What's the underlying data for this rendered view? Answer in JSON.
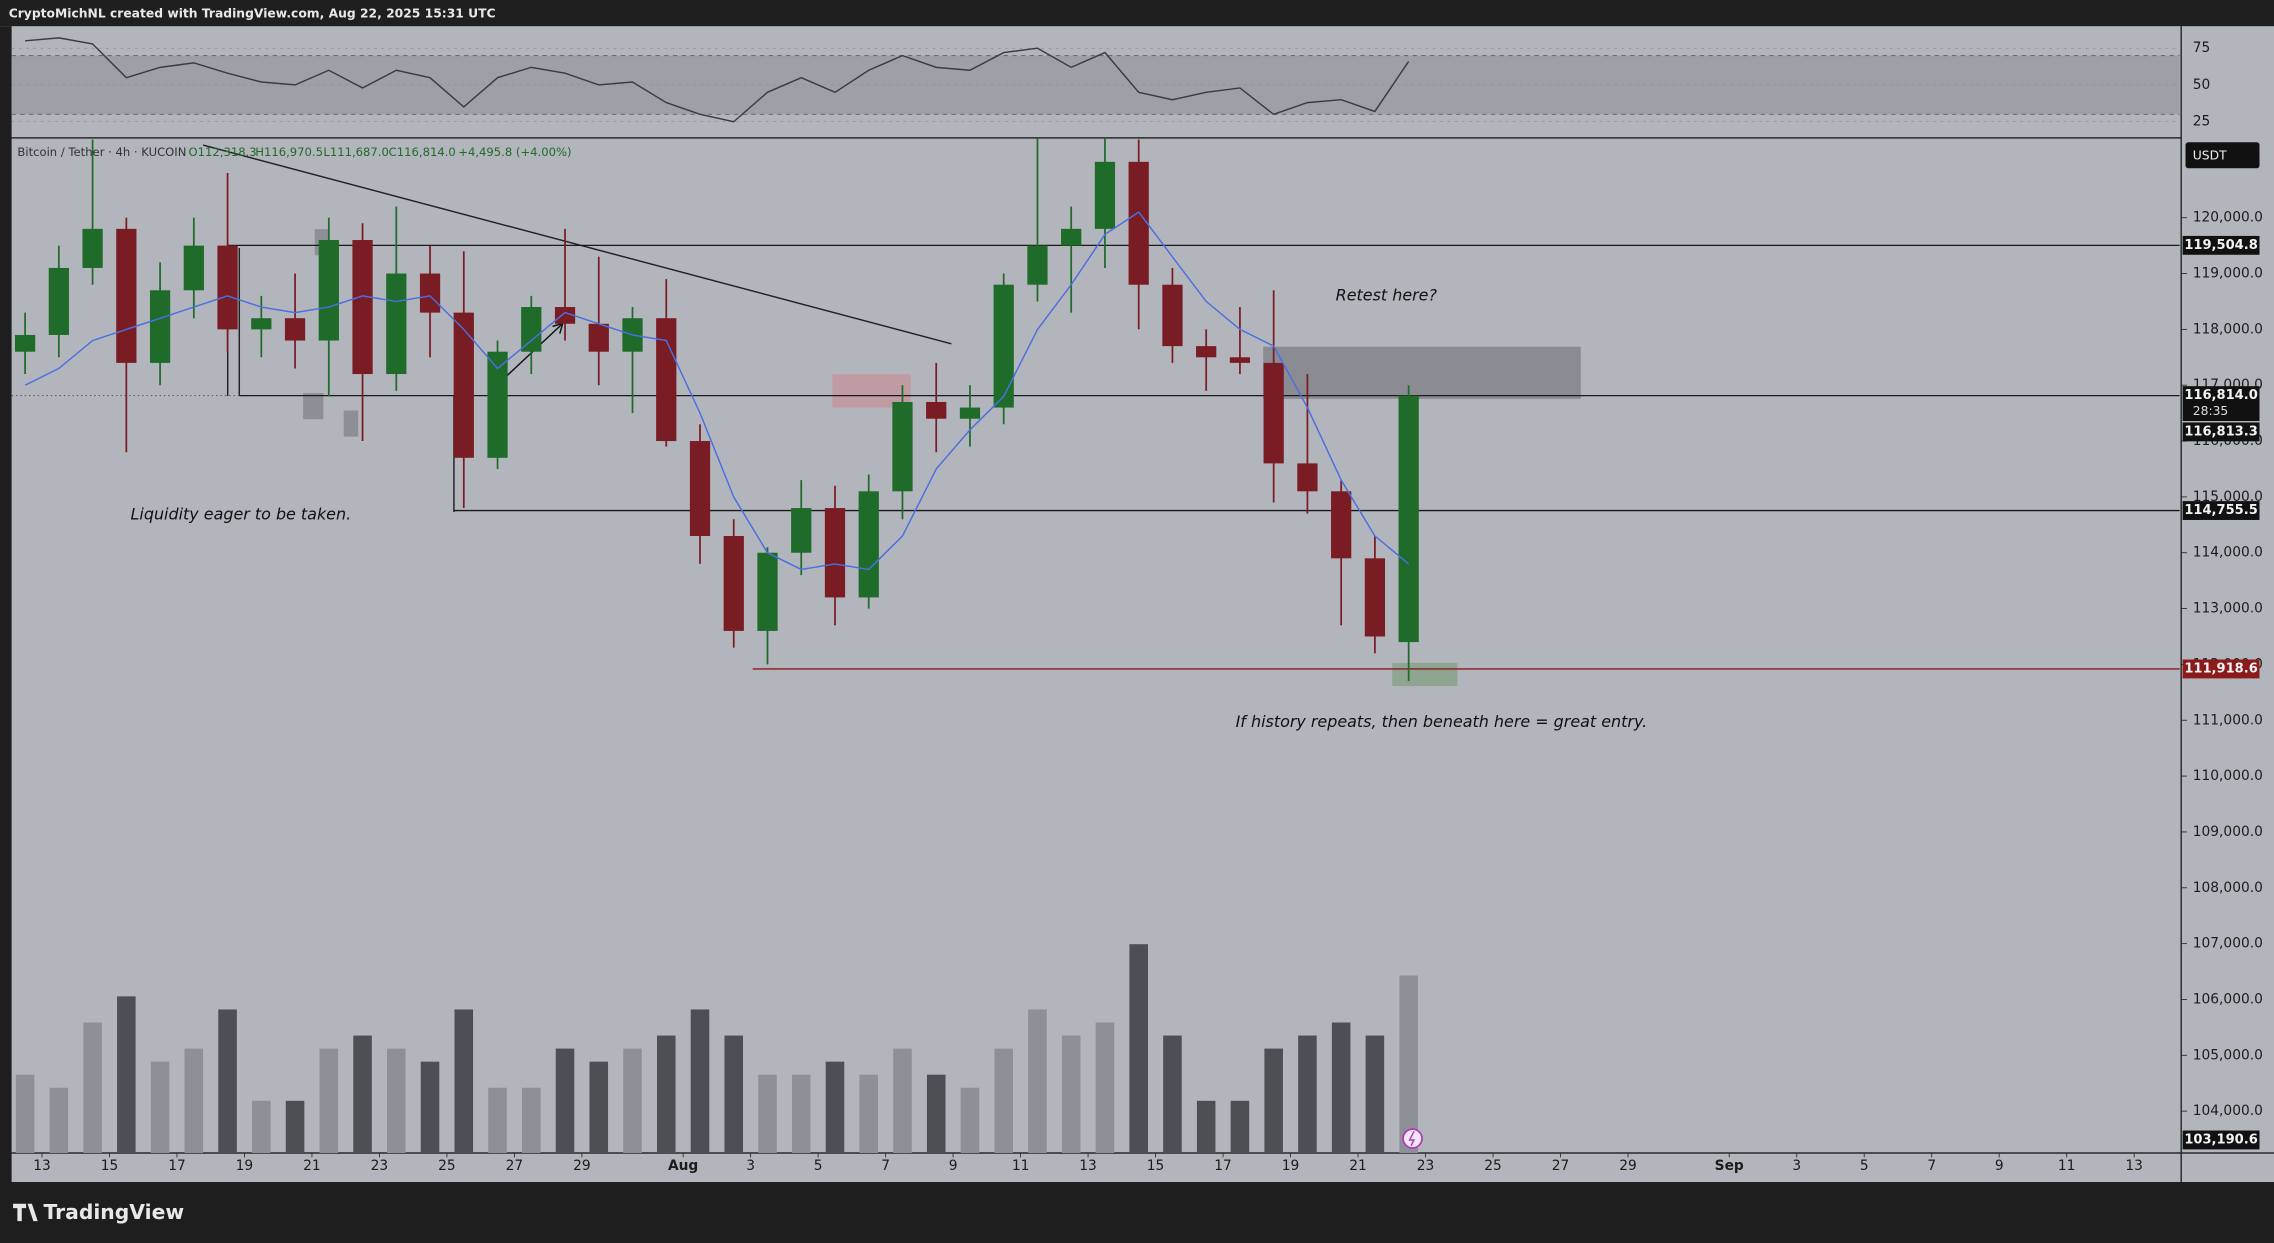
{
  "header": "CryptoMichNL created with TradingView.com, Aug 22, 2025 15:31 UTC",
  "footer_brand": "TradingView",
  "chart_data": {
    "type": "candlestick",
    "legend": {
      "symbol": "Bitcoin / Tether · 4h · KUCOIN",
      "open": "O112,318.3",
      "high": "H116,970.5",
      "low": "L111,687.0",
      "close": "C116,814.0",
      "change": "+4,495.8 (+4.00%)"
    },
    "currency": "USDT",
    "up_color": "#1e6b2a",
    "down_color": "#7a1c24",
    "x": [
      12.5,
      13.5,
      14.5,
      15.5,
      16.5,
      17.5,
      18.5,
      19.5,
      20.5,
      21.5,
      22.5,
      23.5,
      24.5,
      25.5,
      26.5,
      27.5,
      28.5,
      29.5,
      30.5,
      31.5,
      32.5,
      33.5,
      34.5,
      35.5,
      36.5,
      37.5,
      38.5,
      39.5,
      40.5,
      41.5,
      42.5,
      43.5,
      44.5,
      45.5,
      46.5,
      47.5,
      48.5,
      49.5,
      50.5,
      51.5,
      52.5,
      53.5
    ],
    "open": [
      117600,
      117900,
      119100,
      119800,
      117400,
      118700,
      119500,
      118000,
      118200,
      117800,
      119600,
      117200,
      119000,
      118300,
      115700,
      117600,
      118400,
      118100,
      117600,
      118200,
      116000,
      114300,
      112600,
      114000,
      114800,
      113200,
      115100,
      116700,
      116400,
      116600,
      118800,
      119500,
      119800,
      121000,
      118800,
      117700,
      117500,
      117400,
      115600,
      115100,
      113900,
      112400
    ],
    "high": [
      118300,
      119500,
      121400,
      120000,
      119200,
      120000,
      120800,
      118600,
      119000,
      120000,
      119900,
      120200,
      119500,
      119400,
      117800,
      118600,
      119800,
      119300,
      118400,
      118900,
      116300,
      114600,
      114100,
      115300,
      115200,
      115400,
      117000,
      117400,
      117000,
      119000,
      121500,
      120200,
      121700,
      121400,
      119100,
      118000,
      118400,
      118700,
      117200,
      115300,
      114300,
      117000
    ],
    "low": [
      117200,
      117500,
      118800,
      115800,
      117000,
      118200,
      117600,
      117500,
      117300,
      116800,
      116000,
      116900,
      117500,
      114800,
      115500,
      117200,
      117800,
      117000,
      116500,
      115900,
      113800,
      112300,
      112000,
      113600,
      112700,
      113000,
      114600,
      115800,
      115900,
      116300,
      118500,
      118300,
      119100,
      118000,
      117400,
      116900,
      117200,
      114900,
      114700,
      112700,
      112200,
      111700
    ],
    "close": [
      117900,
      119100,
      119800,
      117400,
      118700,
      119500,
      118000,
      118200,
      117800,
      119600,
      117200,
      119000,
      118300,
      115700,
      117600,
      118400,
      118100,
      117600,
      118200,
      116000,
      114300,
      112600,
      114000,
      114800,
      113200,
      115100,
      116700,
      116400,
      116600,
      118800,
      119500,
      119800,
      121000,
      118800,
      117700,
      117500,
      117400,
      115600,
      115100,
      113900,
      112500,
      116814
    ],
    "ma": {
      "color": "#4a6fe0",
      "values": [
        117000,
        117300,
        117800,
        118000,
        118200,
        118400,
        118600,
        118400,
        118300,
        118400,
        118600,
        118500,
        118600,
        118000,
        117300,
        117800,
        118300,
        118100,
        117900,
        117800,
        116500,
        115000,
        114000,
        113700,
        113800,
        113700,
        114300,
        115500,
        116200,
        116800,
        118000,
        118800,
        119700,
        120100,
        119300,
        118500,
        118000,
        117700,
        116600,
        115300,
        114300,
        113800
      ]
    },
    "volume": {
      "ylim": [
        0,
        100
      ],
      "values": [
        30,
        25,
        50,
        60,
        35,
        40,
        55,
        20,
        20,
        40,
        45,
        40,
        35,
        55,
        25,
        25,
        40,
        35,
        40,
        45,
        55,
        45,
        30,
        30,
        35,
        30,
        40,
        30,
        25,
        40,
        55,
        45,
        50,
        80,
        45,
        20,
        20,
        40,
        45,
        50,
        45,
        68
      ]
    },
    "xlim": [
      12.1,
      76.35
    ],
    "xticks": [
      13,
      15,
      17,
      19,
      21,
      23,
      25,
      27,
      29,
      {
        "value": 32,
        "label": "Aug"
      },
      {
        "value": 34,
        "label": "3"
      },
      {
        "value": 36,
        "label": "5"
      },
      {
        "value": 38,
        "label": "7"
      },
      {
        "value": 40,
        "label": "9"
      },
      {
        "value": 42,
        "label": "11"
      },
      {
        "value": 44,
        "label": "13"
      },
      {
        "value": 46,
        "label": "15"
      },
      {
        "value": 48,
        "label": "17"
      },
      {
        "value": 50,
        "label": "19"
      },
      {
        "value": 52,
        "label": "21"
      },
      {
        "value": 54,
        "label": "23"
      },
      {
        "value": 56,
        "label": "25"
      },
      {
        "value": 58,
        "label": "27"
      },
      {
        "value": 60,
        "label": "29"
      },
      {
        "value": 63,
        "label": "Sep"
      },
      {
        "value": 65,
        "label": "3"
      },
      {
        "value": 67,
        "label": "5"
      },
      {
        "value": 69,
        "label": "7"
      },
      {
        "value": 71,
        "label": "9"
      },
      {
        "value": 73,
        "label": "11"
      },
      {
        "value": 75,
        "label": "13"
      }
    ],
    "ylim": [
      103250,
      121430
    ],
    "yticks": [
      {
        "value": 104000,
        "label": "104,000.0"
      },
      {
        "value": 105000,
        "label": "105,000.0"
      },
      {
        "value": 106000,
        "label": "106,000.0"
      },
      {
        "value": 107000,
        "label": "107,000.0"
      },
      {
        "value": 108000,
        "label": "108,000.0"
      },
      {
        "value": 109000,
        "label": "109,000.0"
      },
      {
        "value": 110000,
        "label": "110,000.0"
      },
      {
        "value": 111000,
        "label": "111,000.0"
      },
      {
        "value": 112000,
        "label": "112,000.0"
      },
      {
        "value": 113000,
        "label": "113,000.0"
      },
      {
        "value": 114000,
        "label": "114,000.0"
      },
      {
        "value": 115000,
        "label": "115,000.0"
      },
      {
        "value": 116000,
        "label": "116,000.0"
      },
      {
        "value": 117000,
        "label": "117,000.0"
      },
      {
        "value": 118000,
        "label": "118,000.0"
      },
      {
        "value": 119000,
        "label": "119,000.0"
      },
      {
        "value": 120000,
        "label": "120,000.0"
      }
    ],
    "levels": [
      {
        "value": 119504.8,
        "label": "119,504.8"
      },
      {
        "value": 116814.0,
        "label": "116,814.0",
        "countdown": "28:35"
      },
      {
        "value": 116813.3,
        "label": "116,813.3"
      },
      {
        "value": 114755.5,
        "label": "114,755.5"
      },
      {
        "value": 111918.6,
        "label": "111,918.6",
        "color": "#8b1a1a"
      },
      {
        "value": 103190.6,
        "label": "103,190.6"
      }
    ],
    "rsi": {
      "color": "#3a3c42",
      "ylim": [
        14,
        90
      ],
      "yticks": [
        75,
        50,
        25
      ],
      "band": [
        30,
        70
      ],
      "values": [
        80,
        82,
        78,
        55,
        62,
        65,
        58,
        52,
        50,
        60,
        48,
        60,
        55,
        35,
        55,
        62,
        58,
        50,
        52,
        38,
        30,
        25,
        45,
        55,
        45,
        60,
        70,
        62,
        60,
        72,
        75,
        62,
        72,
        45,
        40,
        45,
        48,
        30,
        38,
        40,
        32,
        66
      ]
    },
    "annotations": [
      "Liquidity eager to be taken.",
      "Retest here?",
      "If history repeats, then beneath here = great entry."
    ]
  }
}
